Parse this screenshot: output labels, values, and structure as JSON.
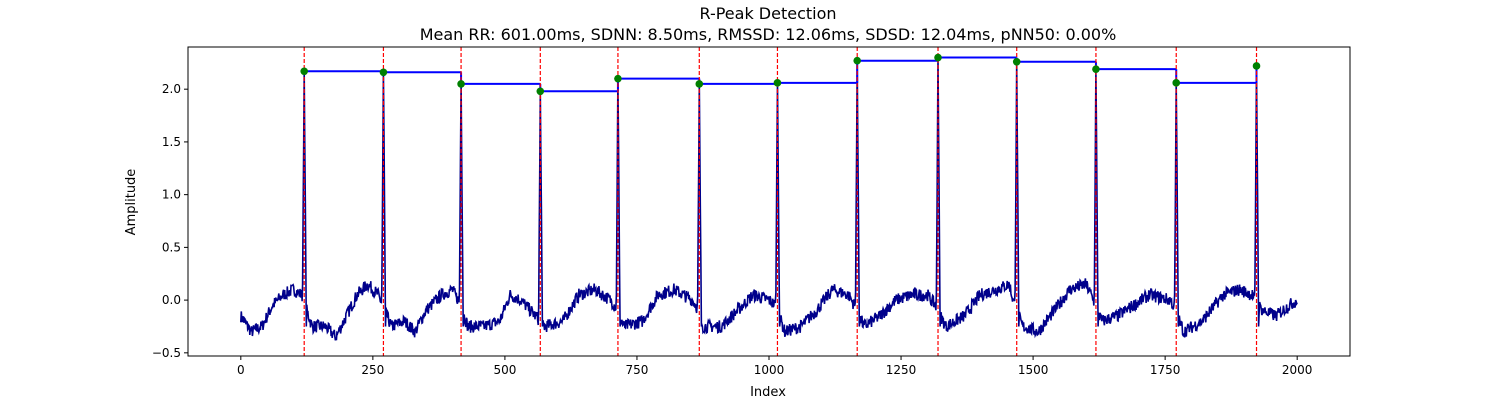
{
  "chart_data": {
    "type": "line",
    "title": "R-Peak Detection",
    "subtitle": "Mean RR: 601.00ms, SDNN: 8.50ms, RMSSD: 12.06ms, SDSD: 12.04ms, pNN50: 0.00%",
    "xlabel": "Index",
    "ylabel": "Amplitude",
    "xlim": [
      -100,
      2100
    ],
    "ylim": [
      -0.53,
      2.4
    ],
    "xticks": [
      0,
      250,
      500,
      750,
      1000,
      1250,
      1500,
      1750,
      2000
    ],
    "yticks": [
      -0.5,
      0.0,
      0.5,
      1.0,
      1.5,
      2.0
    ],
    "grid": false,
    "signal": {
      "color": "#00008b",
      "x_range": [
        0,
        2000
      ],
      "baseline": [
        [
          0,
          -0.15
        ],
        [
          20,
          -0.3
        ],
        [
          40,
          -0.25
        ],
        [
          60,
          -0.05
        ],
        [
          80,
          0.05
        ],
        [
          100,
          0.1
        ],
        [
          115,
          0.05
        ],
        [
          135,
          -0.25
        ],
        [
          160,
          -0.25
        ],
        [
          180,
          -0.35
        ],
        [
          200,
          -0.15
        ],
        [
          220,
          0.05
        ],
        [
          240,
          0.15
        ],
        [
          260,
          0.05
        ],
        [
          285,
          -0.25
        ],
        [
          310,
          -0.2
        ],
        [
          330,
          -0.3
        ],
        [
          350,
          -0.1
        ],
        [
          380,
          0.05
        ],
        [
          400,
          0.1
        ],
        [
          412,
          0.0
        ],
        [
          430,
          -0.25
        ],
        [
          460,
          -0.25
        ],
        [
          490,
          -0.2
        ],
        [
          510,
          0.05
        ],
        [
          530,
          0.0
        ],
        [
          558,
          -0.15
        ],
        [
          575,
          -0.25
        ],
        [
          610,
          -0.2
        ],
        [
          640,
          0.05
        ],
        [
          670,
          0.1
        ],
        [
          700,
          0.0
        ],
        [
          708,
          -0.05
        ],
        [
          725,
          -0.25
        ],
        [
          760,
          -0.2
        ],
        [
          790,
          0.05
        ],
        [
          820,
          0.1
        ],
        [
          855,
          0.0
        ],
        [
          862,
          -0.05
        ],
        [
          875,
          -0.25
        ],
        [
          910,
          -0.25
        ],
        [
          940,
          -0.1
        ],
        [
          970,
          0.05
        ],
        [
          1000,
          0.0
        ],
        [
          1012,
          -0.05
        ],
        [
          1030,
          -0.3
        ],
        [
          1060,
          -0.25
        ],
        [
          1090,
          -0.1
        ],
        [
          1120,
          0.1
        ],
        [
          1150,
          0.05
        ],
        [
          1162,
          -0.05
        ],
        [
          1180,
          -0.25
        ],
        [
          1210,
          -0.15
        ],
        [
          1240,
          0.0
        ],
        [
          1270,
          0.05
        ],
        [
          1300,
          0.05
        ],
        [
          1315,
          -0.05
        ],
        [
          1335,
          -0.25
        ],
        [
          1370,
          -0.15
        ],
        [
          1400,
          0.05
        ],
        [
          1430,
          0.1
        ],
        [
          1455,
          0.15
        ],
        [
          1462,
          0.0
        ],
        [
          1480,
          -0.25
        ],
        [
          1510,
          -0.3
        ],
        [
          1540,
          -0.1
        ],
        [
          1570,
          0.1
        ],
        [
          1600,
          0.15
        ],
        [
          1610,
          0.05
        ],
        [
          1630,
          -0.2
        ],
        [
          1660,
          -0.15
        ],
        [
          1690,
          -0.05
        ],
        [
          1720,
          0.05
        ],
        [
          1760,
          0.0
        ],
        [
          1765,
          -0.05
        ],
        [
          1785,
          -0.3
        ],
        [
          1820,
          -0.2
        ],
        [
          1860,
          0.05
        ],
        [
          1890,
          0.1
        ],
        [
          1915,
          0.05
        ],
        [
          1918,
          0.0
        ],
        [
          1935,
          -0.1
        ],
        [
          1960,
          -0.15
        ],
        [
          1985,
          -0.05
        ],
        [
          2000,
          0.0
        ]
      ]
    },
    "r_peaks": {
      "marker_color": "#008000",
      "line_color": "#ff0000",
      "x": [
        120,
        270,
        417,
        567,
        714,
        868,
        1016,
        1167,
        1320,
        1469,
        1619,
        1771,
        1923
      ],
      "y": [
        2.17,
        2.16,
        2.05,
        1.98,
        2.1,
        2.05,
        2.06,
        2.27,
        2.3,
        2.26,
        2.19,
        2.06,
        2.22
      ]
    },
    "rr_steps": {
      "color": "#0000ff"
    }
  }
}
